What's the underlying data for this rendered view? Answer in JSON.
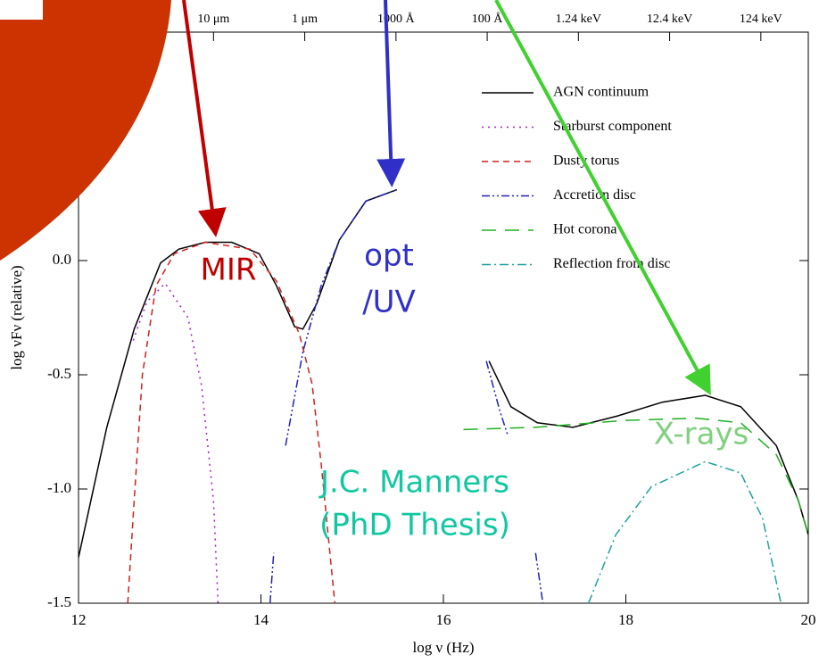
{
  "chart_data": {
    "type": "line",
    "xlabel": "log ν (Hz)",
    "ylabel": "log νFν (relative)",
    "xlim": [
      12,
      20
    ],
    "ylim": [
      -1.5,
      1.0
    ],
    "xticks": [
      12,
      14,
      16,
      18,
      20
    ],
    "yticks": [
      {
        "value": -1.5,
        "label": "-1.5"
      },
      {
        "value": -1.0,
        "label": "-1.0"
      },
      {
        "value": -0.5,
        "label": "-0.5"
      },
      {
        "value": 0.0,
        "label": "0.0"
      }
    ],
    "x2ticks": [
      {
        "value": 13.48,
        "label": "10 μm"
      },
      {
        "value": 14.48,
        "label": "1 μm"
      },
      {
        "value": 15.48,
        "label": "1000 Å"
      },
      {
        "value": 16.48,
        "label": "100 Å"
      },
      {
        "value": 17.48,
        "label": "1.24 keV"
      },
      {
        "value": 18.48,
        "label": "12.4 keV"
      },
      {
        "value": 19.48,
        "label": "124 keV"
      }
    ],
    "legend": "upper right",
    "series": [
      {
        "name": "AGN continuum",
        "color": "#000000",
        "linestyle": "solid",
        "x": [
          12.0,
          12.31,
          12.61,
          12.9,
          13.1,
          13.39,
          13.68,
          13.98,
          14.17,
          14.37,
          14.46,
          14.61,
          14.86,
          15.15,
          15.49,
          null,
          16.5,
          16.74,
          17.03,
          17.42,
          17.91,
          18.4,
          18.87,
          19.26,
          19.65,
          19.89,
          20.0
        ],
        "values": [
          -1.3,
          -0.73,
          -0.3,
          -0.01,
          0.05,
          0.08,
          0.08,
          0.03,
          -0.11,
          -0.29,
          -0.3,
          -0.19,
          0.09,
          0.26,
          0.31,
          null,
          -0.44,
          -0.64,
          -0.71,
          -0.73,
          -0.68,
          -0.62,
          -0.59,
          -0.64,
          -0.81,
          -1.05,
          -1.2
        ]
      },
      {
        "name": "Starburst component",
        "color": "#a020c0",
        "linestyle": "dotted",
        "x": [
          12.6,
          12.75,
          12.95,
          13.2,
          13.35,
          13.48,
          13.53
        ],
        "values": [
          -0.35,
          -0.18,
          -0.1,
          -0.25,
          -0.55,
          -1.05,
          -1.5
        ]
      },
      {
        "name": "Dusty torus",
        "color": "#d02020",
        "linestyle": "dashed",
        "x": [
          12.54,
          12.61,
          12.7,
          12.85,
          13.05,
          13.39,
          13.88,
          14.17,
          14.42,
          14.56,
          14.66,
          14.81
        ],
        "values": [
          -1.5,
          -1.05,
          -0.5,
          -0.11,
          0.03,
          0.08,
          0.05,
          -0.09,
          -0.32,
          -0.54,
          -0.89,
          -1.5
        ]
      },
      {
        "name": "Accretion disc",
        "color": "#2020c0",
        "linestyle": "dashdotdot",
        "x": [
          14.1,
          14.14,
          null,
          14.27,
          14.46,
          14.66,
          14.86,
          15.15,
          15.49,
          null,
          16.47,
          16.62,
          16.71,
          null,
          17.01,
          17.09
        ],
        "values": [
          -1.5,
          -1.28,
          null,
          -0.81,
          -0.4,
          -0.11,
          0.09,
          0.26,
          0.31,
          null,
          -0.44,
          -0.66,
          -0.77,
          null,
          -1.28,
          -1.5
        ]
      },
      {
        "name": "Hot corona",
        "color": "#20b020",
        "linestyle": "longdash",
        "x": [
          16.22,
          17.01,
          17.99,
          18.77,
          19.26,
          19.65,
          19.89,
          20.0
        ],
        "values": [
          -0.74,
          -0.73,
          -0.7,
          -0.69,
          -0.71,
          -0.85,
          -1.05,
          -1.2
        ]
      },
      {
        "name": "Reflection from disc",
        "color": "#20a0a0",
        "linestyle": "dashdot",
        "x": [
          17.59,
          17.89,
          18.28,
          18.87,
          19.26,
          19.5,
          19.7
        ],
        "values": [
          -1.5,
          -1.2,
          -0.99,
          -0.88,
          -0.93,
          -1.13,
          -1.5
        ]
      }
    ]
  },
  "annotations": {
    "mir": "MIR",
    "opt_uv": [
      "opt",
      "/UV"
    ],
    "xrays": "X-rays",
    "credit": [
      "J.C. Manners",
      "(PhD Thesis)"
    ]
  }
}
